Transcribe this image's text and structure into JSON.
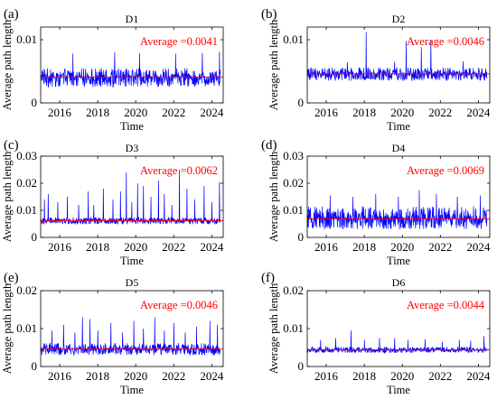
{
  "figure": {
    "xlabel": "Time",
    "ylabel": "Average path length",
    "colors": {
      "line": "#0000ff",
      "mean": "#ff0000",
      "annotation": "#ff0000",
      "axis": "#000000"
    }
  },
  "chart_data": [
    {
      "type": "line",
      "panel": "(a)",
      "title": "D1",
      "xlabel": "Time",
      "ylabel": "Average path length",
      "xlim": [
        2015,
        2024.6
      ],
      "xticks": [
        2016,
        2018,
        2020,
        2022,
        2024
      ],
      "ylim": [
        0,
        0.012
      ],
      "yticks": [
        0,
        0.01
      ],
      "ytick_labels": [
        "0",
        "0.01"
      ],
      "average": 0.0041,
      "annotation": "Average =0.0041",
      "base_min": 0.0025,
      "base_max": 0.0055,
      "spikes": [
        [
          2016.7,
          0.0078
        ],
        [
          2018.9,
          0.008
        ],
        [
          2020.2,
          0.0079
        ],
        [
          2022.1,
          0.0078
        ],
        [
          2023.5,
          0.0079
        ],
        [
          2024.4,
          0.0081
        ]
      ]
    },
    {
      "type": "line",
      "panel": "(b)",
      "title": "D2",
      "xlabel": "Time",
      "ylabel": "Average path length",
      "xlim": [
        2015,
        2024.6
      ],
      "xticks": [
        2016,
        2018,
        2020,
        2022,
        2024
      ],
      "ylim": [
        0,
        0.012
      ],
      "yticks": [
        0,
        0.01
      ],
      "ytick_labels": [
        "0",
        "0.01"
      ],
      "average": 0.0046,
      "annotation": "Average =0.0046",
      "base_min": 0.0035,
      "base_max": 0.0056,
      "spikes": [
        [
          2017.1,
          0.0064
        ],
        [
          2018.1,
          0.0112
        ],
        [
          2019.6,
          0.0065
        ],
        [
          2020.2,
          0.0098
        ],
        [
          2021.0,
          0.0088
        ],
        [
          2021.5,
          0.01
        ],
        [
          2023.2,
          0.0066
        ]
      ]
    },
    {
      "type": "line",
      "panel": "(c)",
      "title": "D3",
      "xlabel": "Time",
      "ylabel": "Average path length",
      "xlim": [
        2015,
        2024.6
      ],
      "xticks": [
        2016,
        2018,
        2020,
        2022,
        2024
      ],
      "ylim": [
        0,
        0.03
      ],
      "yticks": [
        0,
        0.01,
        0.02,
        0.03
      ],
      "ytick_labels": [
        "0",
        "0.01",
        "0.02",
        "0.03"
      ],
      "average": 0.0062,
      "annotation": "Average =0.0062",
      "base_min": 0.0048,
      "base_max": 0.0074,
      "spikes": [
        [
          2015.2,
          0.014
        ],
        [
          2015.4,
          0.016
        ],
        [
          2015.9,
          0.013
        ],
        [
          2016.4,
          0.015
        ],
        [
          2017.0,
          0.012
        ],
        [
          2017.5,
          0.017
        ],
        [
          2017.8,
          0.012
        ],
        [
          2018.3,
          0.018
        ],
        [
          2018.8,
          0.014
        ],
        [
          2019.2,
          0.017
        ],
        [
          2019.5,
          0.024
        ],
        [
          2019.8,
          0.013
        ],
        [
          2020.1,
          0.02
        ],
        [
          2020.4,
          0.019
        ],
        [
          2020.8,
          0.015
        ],
        [
          2021.2,
          0.021
        ],
        [
          2021.5,
          0.016
        ],
        [
          2021.9,
          0.012
        ],
        [
          2022.3,
          0.025
        ],
        [
          2022.7,
          0.018
        ],
        [
          2023.1,
          0.014
        ],
        [
          2023.6,
          0.019
        ],
        [
          2024.0,
          0.013
        ],
        [
          2024.4,
          0.0205
        ]
      ]
    },
    {
      "type": "line",
      "panel": "(d)",
      "title": "D4",
      "xlabel": "Time",
      "ylabel": "Average path length",
      "xlim": [
        2015,
        2024.6
      ],
      "xticks": [
        2016,
        2018,
        2020,
        2022,
        2024
      ],
      "ylim": [
        0,
        0.03
      ],
      "yticks": [
        0,
        0.01,
        0.02,
        0.03
      ],
      "ytick_labels": [
        "0",
        "0.01",
        "0.02",
        "0.03"
      ],
      "average": 0.0069,
      "annotation": "Average =0.0069",
      "base_min": 0.003,
      "base_max": 0.0115,
      "spikes": [
        [
          2016.2,
          0.0155
        ],
        [
          2017.4,
          0.015
        ],
        [
          2018.6,
          0.016
        ],
        [
          2019.8,
          0.015
        ],
        [
          2020.9,
          0.0175
        ],
        [
          2021.8,
          0.016
        ],
        [
          2022.9,
          0.015
        ],
        [
          2024.1,
          0.0155
        ]
      ]
    },
    {
      "type": "line",
      "panel": "(e)",
      "title": "D5",
      "xlabel": "Time",
      "ylabel": "Average path length",
      "xlim": [
        2015,
        2024.6
      ],
      "xticks": [
        2016,
        2018,
        2020,
        2022,
        2024
      ],
      "ylim": [
        0,
        0.02
      ],
      "yticks": [
        0,
        0.01,
        0.02
      ],
      "ytick_labels": [
        "0",
        "0.01",
        "0.02"
      ],
      "average": 0.0046,
      "annotation": "Average =0.0046",
      "base_min": 0.003,
      "base_max": 0.0062,
      "spikes": [
        [
          2015.6,
          0.0095
        ],
        [
          2016.2,
          0.011
        ],
        [
          2016.8,
          0.009
        ],
        [
          2017.2,
          0.013
        ],
        [
          2017.6,
          0.0125
        ],
        [
          2018.0,
          0.0095
        ],
        [
          2018.7,
          0.0115
        ],
        [
          2019.3,
          0.009
        ],
        [
          2019.9,
          0.012
        ],
        [
          2020.4,
          0.01
        ],
        [
          2021.0,
          0.013
        ],
        [
          2021.5,
          0.0095
        ],
        [
          2022.0,
          0.0115
        ],
        [
          2022.6,
          0.009
        ],
        [
          2023.2,
          0.0105
        ],
        [
          2023.9,
          0.012
        ],
        [
          2024.3,
          0.011
        ]
      ]
    },
    {
      "type": "line",
      "panel": "(f)",
      "title": "D6",
      "xlabel": "Time",
      "ylabel": "Average path length",
      "xlim": [
        2015,
        2024.6
      ],
      "xticks": [
        2016,
        2018,
        2020,
        2022,
        2024
      ],
      "ylim": [
        0,
        0.02
      ],
      "yticks": [
        0,
        0.01,
        0.02
      ],
      "ytick_labels": [
        "0",
        "0.01",
        "0.02"
      ],
      "average": 0.0044,
      "annotation": "Average =0.0044",
      "base_min": 0.0036,
      "base_max": 0.0052,
      "spikes": [
        [
          2015.7,
          0.007
        ],
        [
          2016.5,
          0.0075
        ],
        [
          2017.3,
          0.0095
        ],
        [
          2018.0,
          0.007
        ],
        [
          2018.8,
          0.0075
        ],
        [
          2019.6,
          0.0075
        ],
        [
          2020.3,
          0.007
        ],
        [
          2021.2,
          0.0072
        ],
        [
          2022.1,
          0.0065
        ],
        [
          2023.0,
          0.007
        ],
        [
          2023.6,
          0.0068
        ],
        [
          2024.3,
          0.008
        ]
      ]
    }
  ]
}
